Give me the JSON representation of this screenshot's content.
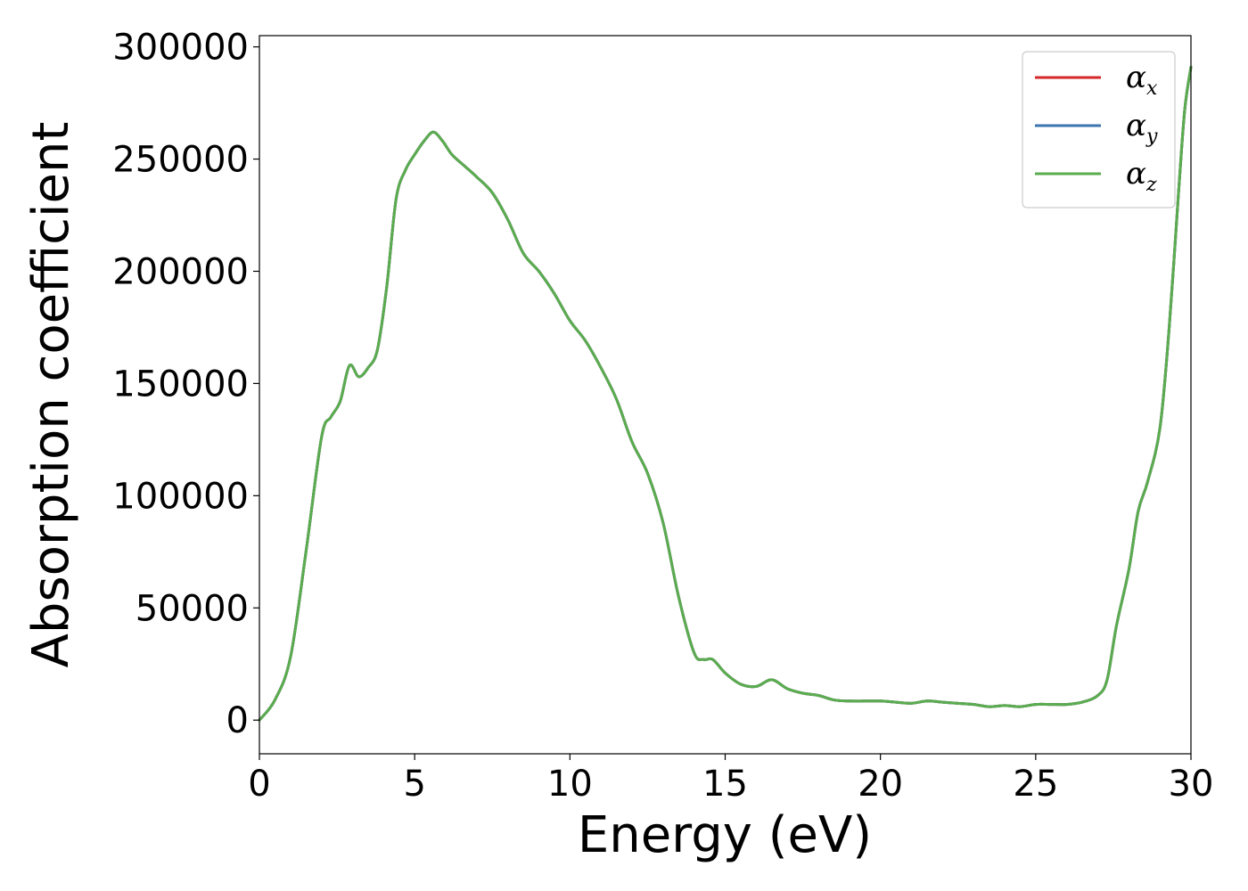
{
  "chart_data": {
    "type": "line",
    "title": "",
    "xlabel": "Energy (eV)",
    "ylabel": "Absorption coefficient",
    "xlim": [
      0,
      30
    ],
    "ylim": [
      -15000,
      305000
    ],
    "xticks": [
      0,
      5,
      10,
      15,
      20,
      25,
      30
    ],
    "yticks": [
      0,
      50000,
      100000,
      150000,
      200000,
      250000,
      300000
    ],
    "grid": false,
    "legend_position": "top-right",
    "legend": [
      {
        "symbol": "α",
        "subscript": "x",
        "color": "#d62728"
      },
      {
        "symbol": "α",
        "subscript": "y",
        "color": "#3b75af"
      },
      {
        "symbol": "α",
        "subscript": "z",
        "color": "#5aac4f"
      }
    ],
    "x": [
      0,
      0.5,
      1.0,
      1.5,
      2.0,
      2.3,
      2.6,
      2.9,
      3.2,
      3.5,
      3.8,
      4.1,
      4.4,
      4.7,
      5.0,
      5.3,
      5.6,
      5.9,
      6.2,
      6.6,
      7.0,
      7.5,
      8.0,
      8.5,
      9.0,
      9.5,
      10.0,
      10.5,
      11.0,
      11.5,
      12.0,
      12.5,
      13.0,
      13.5,
      14.0,
      14.3,
      14.6,
      15.0,
      15.5,
      16.0,
      16.5,
      17.0,
      17.5,
      18.0,
      18.5,
      19.0,
      19.5,
      20.0,
      20.5,
      21.0,
      21.5,
      22.0,
      22.5,
      23.0,
      23.5,
      24.0,
      24.5,
      25.0,
      25.5,
      26.0,
      26.5,
      27.0,
      27.3,
      27.6,
      28.0,
      28.3,
      28.6,
      29.0,
      29.3,
      29.6,
      29.8,
      30.0
    ],
    "series": [
      {
        "name": "",
        "color": "#d62728",
        "values": [
          0,
          9000,
          28000,
          75000,
          126000,
          135000,
          142000,
          158000,
          153000,
          157000,
          165000,
          193000,
          232000,
          245000,
          252000,
          258000,
          262000,
          258000,
          252000,
          247000,
          242000,
          235000,
          223000,
          208000,
          200000,
          190000,
          178000,
          169000,
          157000,
          143000,
          124000,
          110000,
          88000,
          55000,
          30000,
          27000,
          27000,
          21000,
          16000,
          15000,
          18000,
          14000,
          12000,
          11000,
          9000,
          8500,
          8500,
          8500,
          8000,
          7500,
          8500,
          8000,
          7500,
          7000,
          6000,
          6500,
          6000,
          7000,
          7000,
          7000,
          8000,
          11000,
          18000,
          42000,
          67000,
          93000,
          106000,
          130000,
          175000,
          235000,
          272000,
          291000
        ]
      },
      {
        "name": "",
        "color": "#3b75af",
        "values": [
          0,
          9000,
          28000,
          75000,
          126000,
          135000,
          142000,
          158000,
          153000,
          157000,
          165000,
          193000,
          232000,
          245000,
          252000,
          258000,
          262000,
          258000,
          252000,
          247000,
          242000,
          235000,
          223000,
          208000,
          200000,
          190000,
          178000,
          169000,
          157000,
          143000,
          124000,
          110000,
          88000,
          55000,
          30000,
          27000,
          27000,
          21000,
          16000,
          15000,
          18000,
          14000,
          12000,
          11000,
          9000,
          8500,
          8500,
          8500,
          8000,
          7500,
          8500,
          8000,
          7500,
          7000,
          6000,
          6500,
          6000,
          7000,
          7000,
          7000,
          8000,
          11000,
          18000,
          42000,
          67000,
          93000,
          106000,
          130000,
          175000,
          235000,
          272000,
          291000
        ]
      },
      {
        "name": "",
        "color": "#5aac4f",
        "values": [
          0,
          9000,
          28000,
          75000,
          126000,
          135000,
          142000,
          158000,
          153000,
          157000,
          165000,
          193000,
          232000,
          245000,
          252000,
          258000,
          262000,
          258000,
          252000,
          247000,
          242000,
          235000,
          223000,
          208000,
          200000,
          190000,
          178000,
          169000,
          157000,
          143000,
          124000,
          110000,
          88000,
          55000,
          30000,
          27000,
          27000,
          21000,
          16000,
          15000,
          18000,
          14000,
          12000,
          11000,
          9000,
          8500,
          8500,
          8500,
          8000,
          7500,
          8500,
          8000,
          7500,
          7000,
          6000,
          6500,
          6000,
          7000,
          7000,
          7000,
          8000,
          11000,
          18000,
          42000,
          67000,
          93000,
          106000,
          130000,
          175000,
          235000,
          272000,
          291000
        ]
      }
    ]
  }
}
